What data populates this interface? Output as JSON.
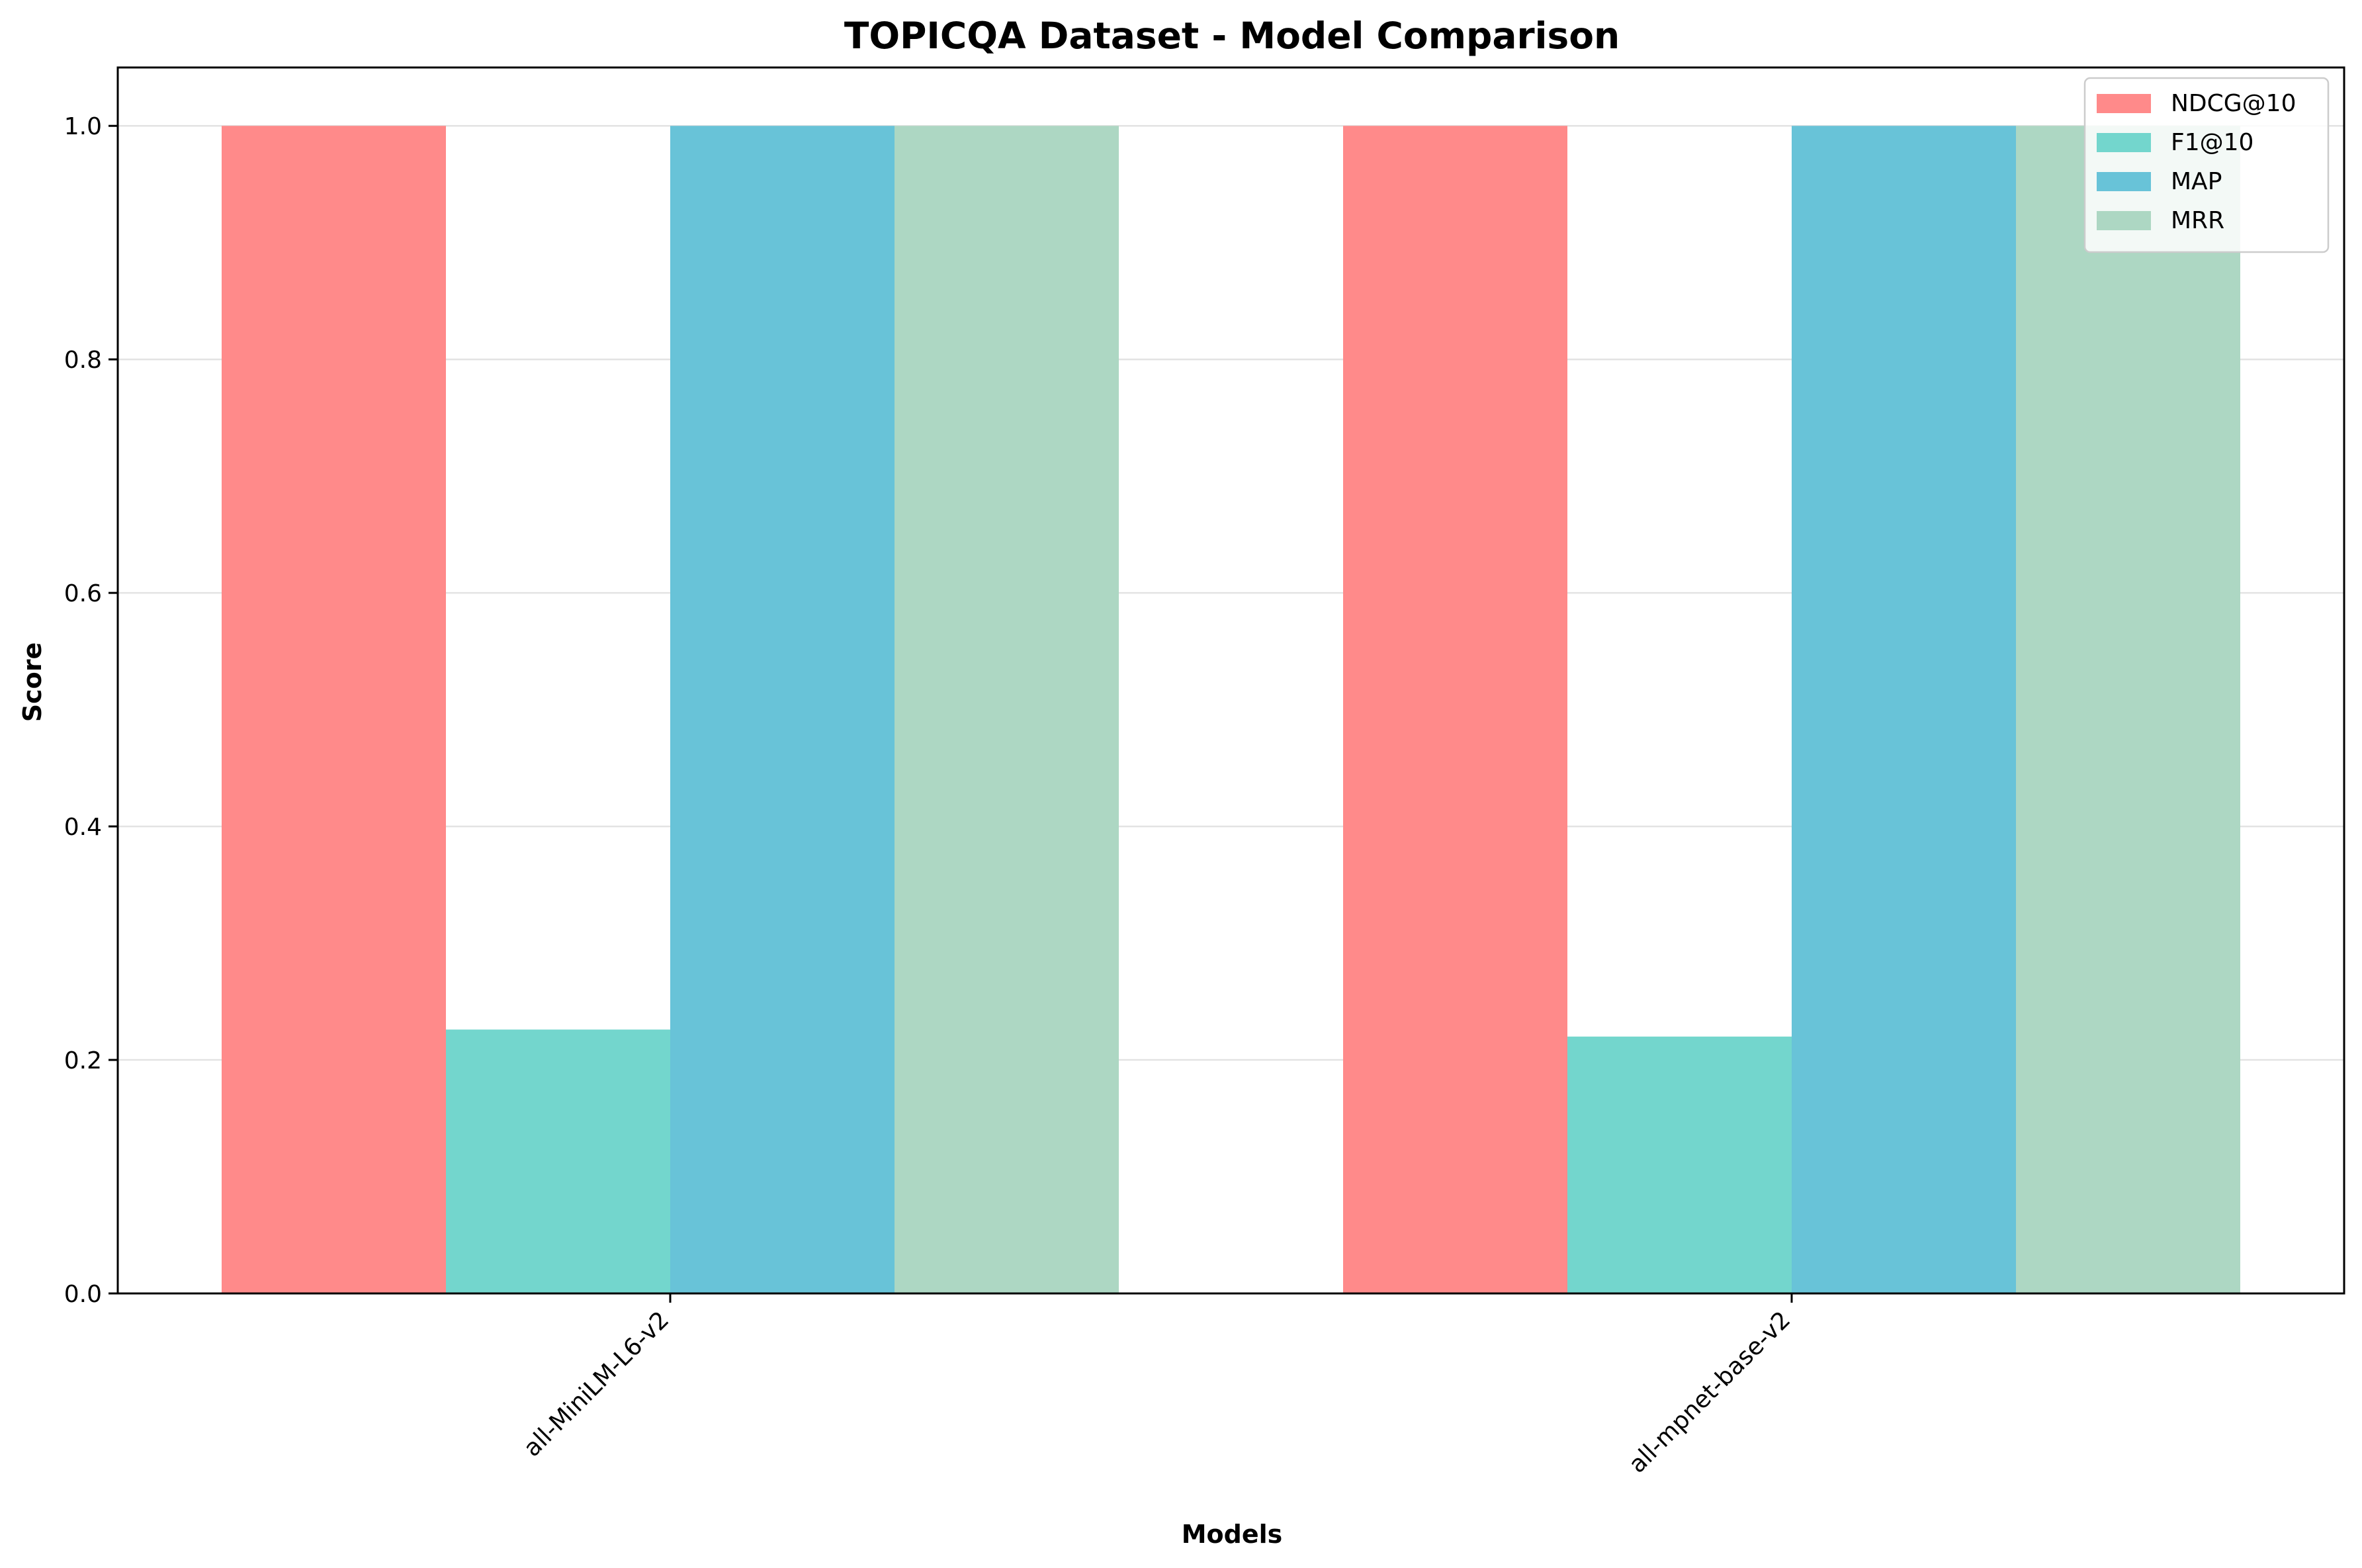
{
  "chart_data": {
    "type": "bar",
    "title": "TOPICQA Dataset - Model Comparison",
    "xlabel": "Models",
    "ylabel": "Score",
    "categories": [
      "all-MiniLM-L6-v2",
      "all-mpnet-base-v2"
    ],
    "series": [
      {
        "name": "NDCG@10",
        "color": "#ff8a8a",
        "values": [
          1.0,
          1.0
        ]
      },
      {
        "name": "F1@10",
        "color": "#73d6cd",
        "values": [
          0.226,
          0.22
        ]
      },
      {
        "name": "MAP",
        "color": "#68c3d8",
        "values": [
          1.0,
          1.0
        ]
      },
      {
        "name": "MRR",
        "color": "#add7c3",
        "values": [
          1.0,
          1.0
        ]
      }
    ],
    "ylim": [
      0,
      1.05
    ],
    "yticks": [
      "0.0",
      "0.2",
      "0.4",
      "0.6",
      "0.8",
      "1.0"
    ],
    "grid": "horizontal",
    "legend_position": "top-right"
  }
}
